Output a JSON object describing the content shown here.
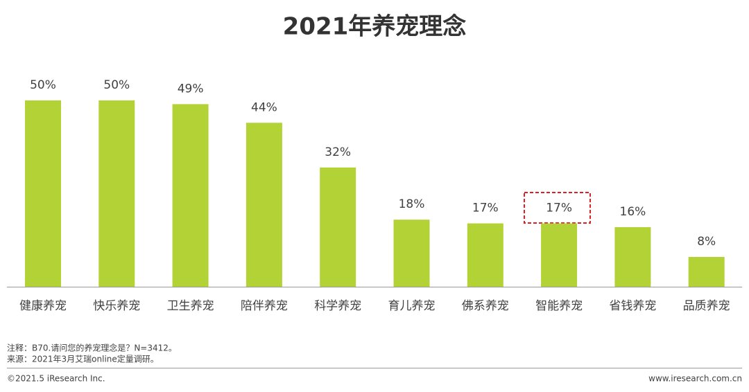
{
  "chart_data": {
    "type": "bar",
    "title": "2021年养宠理念",
    "categories": [
      "健康养宠",
      "快乐养宠",
      "卫生养宠",
      "陪伴养宠",
      "科学养宠",
      "育儿养宠",
      "佛系养宠",
      "智能养宠",
      "省钱养宠",
      "品质养宠"
    ],
    "values": [
      50,
      50,
      49,
      44,
      32,
      18,
      17,
      17,
      16,
      8
    ],
    "value_labels": [
      "50%",
      "50%",
      "49%",
      "44%",
      "32%",
      "18%",
      "17%",
      "17%",
      "16%",
      "8%"
    ],
    "color": "#b3d235"
  },
  "notes": [
    "注释：B70.请问您的养宠理念是？N=3412。",
    "来源：2021年3月艾瑞online定量调研。"
  ],
  "footer": {
    "left": "©2021.5 iResearch Inc.",
    "right": "www.iresearch.com.cn"
  }
}
